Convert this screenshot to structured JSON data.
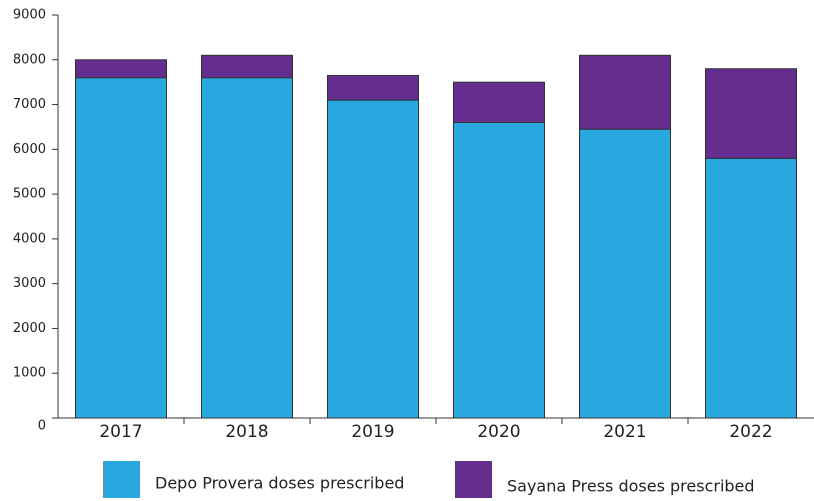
{
  "chart_data": {
    "type": "stacked_bar",
    "categories": [
      "2017",
      "2018",
      "2019",
      "2020",
      "2021",
      "2022"
    ],
    "series": [
      {
        "name": "Depo Provera doses prescribed",
        "color": "#29a8e0",
        "values": [
          7600,
          7600,
          7100,
          6600,
          6450,
          5800
        ]
      },
      {
        "name": "Sayana Press doses prescribed",
        "color": "#662d91",
        "values": [
          400,
          500,
          550,
          900,
          1650,
          2000
        ]
      }
    ],
    "ylim": [
      0,
      9000
    ],
    "yticks": [
      0,
      1000,
      2000,
      3000,
      4000,
      5000,
      6000,
      7000,
      8000,
      9000
    ],
    "grid": false
  }
}
